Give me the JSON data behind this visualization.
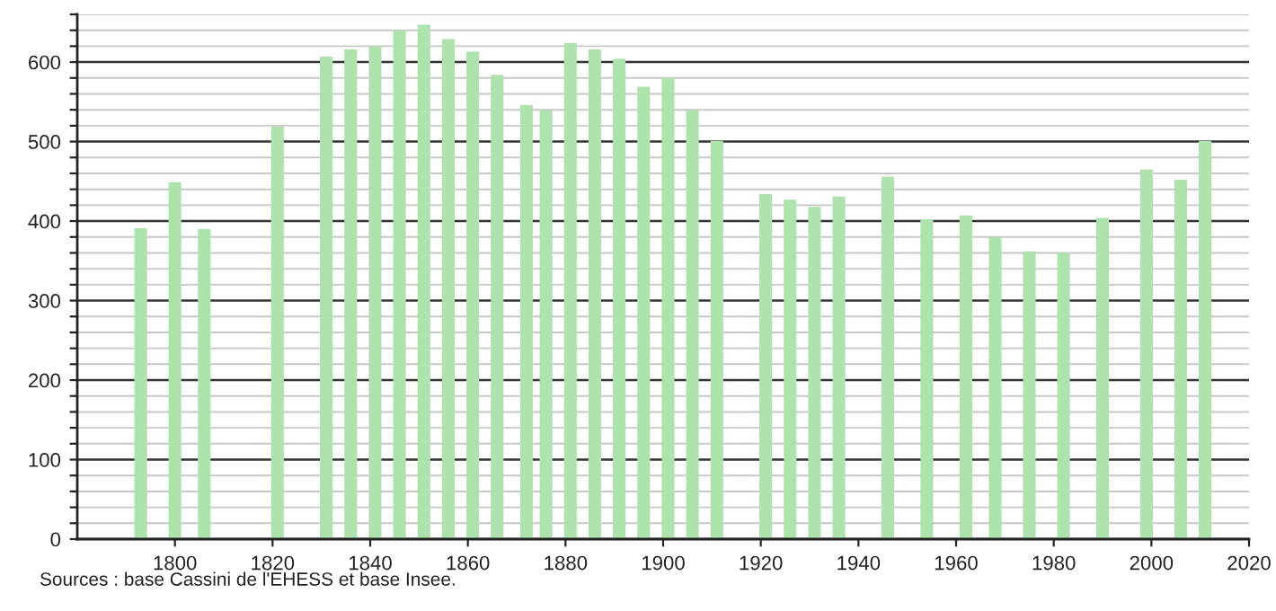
{
  "chart_data": {
    "type": "bar",
    "x": [
      1793,
      1800,
      1806,
      1821,
      1831,
      1836,
      1841,
      1846,
      1851,
      1856,
      1861,
      1866,
      1872,
      1876,
      1881,
      1886,
      1891,
      1896,
      1901,
      1906,
      1911,
      1921,
      1926,
      1931,
      1936,
      1946,
      1954,
      1962,
      1968,
      1975,
      1982,
      1990,
      1999,
      2006,
      2011
    ],
    "values": [
      391,
      449,
      390,
      519,
      607,
      616,
      620,
      640,
      647,
      629,
      613,
      584,
      546,
      539,
      624,
      616,
      604,
      569,
      580,
      539,
      501,
      434,
      427,
      418,
      431,
      456,
      402,
      407,
      380,
      362,
      360,
      404,
      465,
      452,
      501
    ],
    "color": "#aee3ae",
    "xlim": [
      1780,
      2020
    ],
    "xticks": [
      1800,
      1820,
      1840,
      1860,
      1880,
      1900,
      1920,
      1940,
      1960,
      1980,
      2000,
      2020
    ],
    "ylim": [
      0,
      660
    ],
    "yticks": [
      0,
      {
        "value": 20,
        "label": null
      },
      {
        "value": 40,
        "label": null
      },
      {
        "value": 60,
        "label": null
      },
      {
        "value": 80,
        "label": null
      },
      100,
      {
        "value": 120,
        "label": null
      },
      {
        "value": 140,
        "label": null
      },
      {
        "value": 160,
        "label": null
      },
      {
        "value": 180,
        "label": null
      },
      200,
      {
        "value": 220,
        "label": null
      },
      {
        "value": 240,
        "label": null
      },
      {
        "value": 260,
        "label": null
      },
      {
        "value": 280,
        "label": null
      },
      300,
      {
        "value": 320,
        "label": null
      },
      {
        "value": 340,
        "label": null
      },
      {
        "value": 360,
        "label": null
      },
      {
        "value": 380,
        "label": null
      },
      400,
      {
        "value": 420,
        "label": null
      },
      {
        "value": 440,
        "label": null
      },
      {
        "value": 460,
        "label": null
      },
      {
        "value": 480,
        "label": null
      },
      500,
      {
        "value": 520,
        "label": null
      },
      {
        "value": 540,
        "label": null
      },
      {
        "value": 560,
        "label": null
      },
      {
        "value": 580,
        "label": null
      },
      600,
      {
        "value": 620,
        "label": null
      },
      {
        "value": 640,
        "label": null
      },
      {
        "value": 660,
        "label": null
      }
    ],
    "grid": "y",
    "legend": false,
    "annotations": [
      "Sources : base Cassini de l'EHESS et base Insee."
    ]
  }
}
